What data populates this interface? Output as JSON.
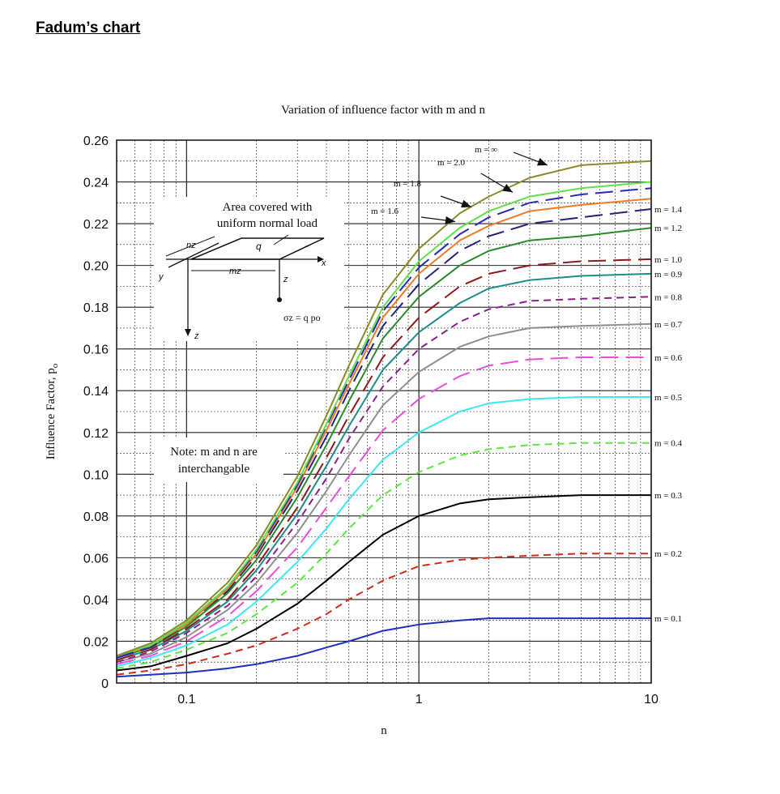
{
  "page_heading": "Fadum’s chart",
  "chart_data": {
    "type": "line",
    "title": "Variation of influence factor with m and n",
    "xlabel": "n",
    "ylabel": "Influence Factor, p",
    "ylabel_subscript": "o",
    "x_scale": "log",
    "xlim": [
      0.05,
      10
    ],
    "ylim": [
      0,
      0.26
    ],
    "x_ticks": [
      0.1,
      1,
      10
    ],
    "x_tick_labels": [
      "0.1",
      "1",
      "10"
    ],
    "y_ticks": [
      0,
      0.02,
      0.04,
      0.06,
      0.08,
      0.1,
      0.12,
      0.14,
      0.16,
      0.18,
      0.2,
      0.22,
      0.24,
      0.26
    ],
    "y_tick_labels": [
      "0",
      "0.02",
      "0.04",
      "0.06",
      "0.08",
      "0.10",
      "0.12",
      "0.14",
      "0.16",
      "0.18",
      "0.20",
      "0.22",
      "0.24",
      "0.26"
    ],
    "grid": true,
    "x": [
      0.05,
      0.07,
      0.1,
      0.15,
      0.2,
      0.3,
      0.4,
      0.5,
      0.7,
      1.0,
      1.5,
      2.0,
      3.0,
      5.0,
      10.0
    ],
    "series": [
      {
        "label": "m = 0.1",
        "color": "#1f2fc0",
        "dash": "solid",
        "values": [
          0.003,
          0.004,
          0.005,
          0.007,
          0.009,
          0.013,
          0.017,
          0.02,
          0.025,
          0.028,
          0.03,
          0.031,
          0.031,
          0.031,
          0.031
        ]
      },
      {
        "label": "m = 0.2",
        "color": "#d42a1a",
        "dash": "dashed",
        "values": [
          0.004,
          0.006,
          0.009,
          0.014,
          0.018,
          0.026,
          0.033,
          0.04,
          0.049,
          0.056,
          0.059,
          0.06,
          0.061,
          0.062,
          0.062
        ]
      },
      {
        "label": "m = 0.3",
        "color": "#000000",
        "dash": "solid",
        "values": [
          0.006,
          0.008,
          0.013,
          0.019,
          0.026,
          0.038,
          0.049,
          0.058,
          0.071,
          0.08,
          0.086,
          0.088,
          0.089,
          0.09,
          0.09
        ]
      },
      {
        "label": "m = 0.4",
        "color": "#5ee83f",
        "dash": "dashed",
        "values": [
          0.007,
          0.01,
          0.016,
          0.024,
          0.033,
          0.048,
          0.062,
          0.074,
          0.09,
          0.101,
          0.109,
          0.112,
          0.114,
          0.115,
          0.115
        ]
      },
      {
        "label": "m = 0.5",
        "color": "#3fe7f0",
        "dash": "solid",
        "values": [
          0.008,
          0.012,
          0.018,
          0.028,
          0.039,
          0.058,
          0.074,
          0.088,
          0.107,
          0.12,
          0.13,
          0.134,
          0.136,
          0.137,
          0.137
        ]
      },
      {
        "label": "m = 0.6",
        "color": "#e84fd9",
        "dash": "longdash",
        "values": [
          0.009,
          0.013,
          0.02,
          0.032,
          0.044,
          0.065,
          0.084,
          0.099,
          0.121,
          0.136,
          0.147,
          0.152,
          0.155,
          0.156,
          0.156
        ]
      },
      {
        "label": "m = 0.7",
        "color": "#8f8f8f",
        "dash": "solid",
        "values": [
          0.01,
          0.014,
          0.022,
          0.035,
          0.048,
          0.072,
          0.092,
          0.109,
          0.133,
          0.149,
          0.161,
          0.166,
          0.17,
          0.171,
          0.172
        ]
      },
      {
        "label": "m = 0.8",
        "color": "#8a1f8a",
        "dash": "dashed",
        "values": [
          0.01,
          0.015,
          0.024,
          0.037,
          0.051,
          0.077,
          0.098,
          0.117,
          0.142,
          0.16,
          0.173,
          0.179,
          0.183,
          0.184,
          0.185
        ]
      },
      {
        "label": "m = 0.9",
        "color": "#1e8c8c",
        "dash": "solid",
        "values": [
          0.011,
          0.016,
          0.025,
          0.039,
          0.054,
          0.081,
          0.104,
          0.123,
          0.15,
          0.168,
          0.182,
          0.189,
          0.193,
          0.195,
          0.196
        ]
      },
      {
        "label": "m = 1.0",
        "color": "#8c1a1a",
        "dash": "longdash",
        "values": [
          0.011,
          0.016,
          0.026,
          0.04,
          0.056,
          0.084,
          0.108,
          0.128,
          0.156,
          0.175,
          0.19,
          0.196,
          0.2,
          0.202,
          0.203
        ]
      },
      {
        "label": "m = 1.2",
        "color": "#2a8a2a",
        "dash": "solid",
        "values": [
          0.012,
          0.017,
          0.027,
          0.043,
          0.059,
          0.089,
          0.114,
          0.135,
          0.165,
          0.185,
          0.2,
          0.207,
          0.212,
          0.214,
          0.218
        ]
      },
      {
        "label": "m = 1.4",
        "color": "#24247a",
        "dash": "longdash",
        "values": [
          0.012,
          0.017,
          0.028,
          0.044,
          0.061,
          0.092,
          0.118,
          0.14,
          0.171,
          0.191,
          0.207,
          0.214,
          0.22,
          0.223,
          0.227
        ]
      },
      {
        "label": "m = 1.6",
        "color": "#f07a25",
        "dash": "solid",
        "values": [
          0.012,
          0.018,
          0.028,
          0.045,
          0.062,
          0.094,
          0.121,
          0.143,
          0.175,
          0.196,
          0.212,
          0.219,
          0.226,
          0.229,
          0.232
        ]
      },
      {
        "label": "m = 1.8",
        "color": "#2a2ab5",
        "dash": "longdash",
        "values": [
          0.012,
          0.018,
          0.029,
          0.046,
          0.063,
          0.095,
          0.123,
          0.145,
          0.178,
          0.199,
          0.215,
          0.223,
          0.23,
          0.234,
          0.237
        ]
      },
      {
        "label": "m = 2.0",
        "color": "#5fe04a",
        "dash": "solid",
        "values": [
          0.013,
          0.018,
          0.029,
          0.046,
          0.064,
          0.096,
          0.124,
          0.147,
          0.18,
          0.202,
          0.218,
          0.226,
          0.233,
          0.237,
          0.24
        ]
      },
      {
        "label": "m = ∞",
        "color": "#8a8a2a",
        "dash": "solid",
        "values": [
          0.013,
          0.019,
          0.03,
          0.048,
          0.066,
          0.099,
          0.128,
          0.152,
          0.186,
          0.208,
          0.225,
          0.233,
          0.242,
          0.248,
          0.25
        ]
      }
    ],
    "annotations": {
      "area_text": [
        "Area covered with",
        "uniform normal load"
      ],
      "note_text": [
        "Note: m and n are",
        "interchangable"
      ],
      "sketch_labels": {
        "nz": "nz",
        "q": "q",
        "mz": "mz",
        "x": "x",
        "y": "y",
        "z": "z",
        "z2": "z",
        "stress": "σz = q po"
      }
    }
  }
}
